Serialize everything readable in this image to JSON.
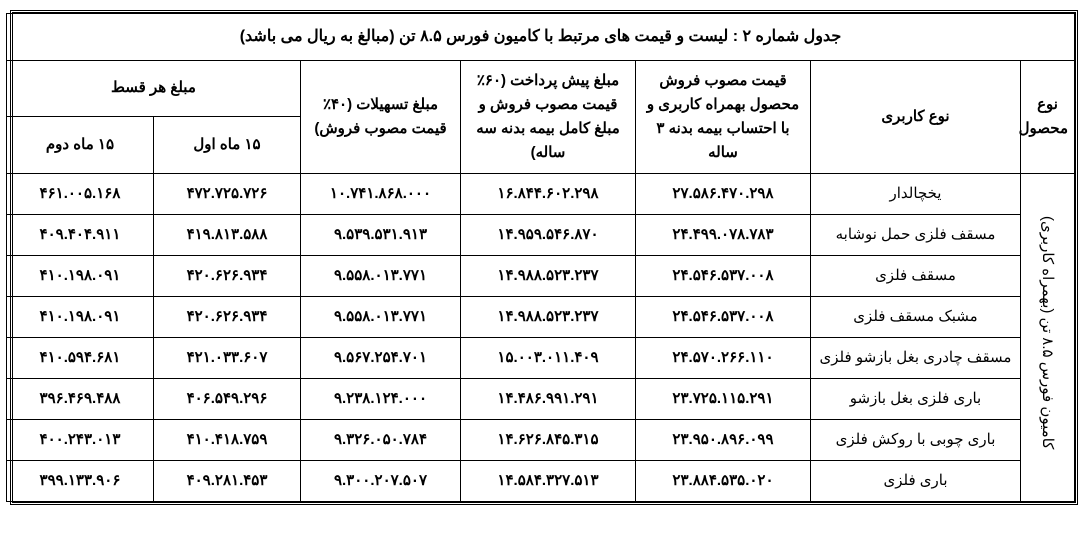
{
  "title": "جدول شماره ۲ : لیست و قیمت های مرتبط با کامیون فورس ۸.۵ تن (مبالغ به ریال می باشد)",
  "headers": {
    "product_type": "نوع محصول",
    "usage_type": "نوع کاربری",
    "approved_price": "قیمت مصوب فروش محصول بهمراه کاربری و با احتساب بیمه بدنه ۳ ساله",
    "prepayment": "مبلغ پیش پرداخت (۶۰٪ قیمت مصوب فروش و مبلغ کامل بیمه بدنه سه ساله)",
    "facilities": "مبلغ تسهیلات (۴۰٪ قیمت مصوب فروش)",
    "installment": "مبلغ هر قسط",
    "first15": "۱۵ ماه اول",
    "second15": "۱۵ ماه دوم"
  },
  "product_label": "کامیون فورس ۸.۵ تن (بهمراه کاربری)",
  "rows": [
    {
      "usage": "یخچالدار",
      "approved": "۲۷.۵۸۶.۴۷۰.۲۹۸",
      "prepay": "۱۶.۸۴۴.۶۰۲.۲۹۸",
      "fac": "۱۰.۷۴۱.۸۶۸.۰۰۰",
      "m1": "۴۷۲.۷۲۵.۷۲۶",
      "m2": "۴۶۱.۰۰۵.۱۶۸"
    },
    {
      "usage": "مسقف فلزی حمل نوشابه",
      "approved": "۲۴.۴۹۹.۰۷۸.۷۸۳",
      "prepay": "۱۴.۹۵۹.۵۴۶.۸۷۰",
      "fac": "۹.۵۳۹.۵۳۱.۹۱۳",
      "m1": "۴۱۹.۸۱۳.۵۸۸",
      "m2": "۴۰۹.۴۰۴.۹۱۱"
    },
    {
      "usage": "مسقف فلزی",
      "approved": "۲۴.۵۴۶.۵۳۷.۰۰۸",
      "prepay": "۱۴.۹۸۸.۵۲۳.۲۳۷",
      "fac": "۹.۵۵۸.۰۱۳.۷۷۱",
      "m1": "۴۲۰.۶۲۶.۹۳۴",
      "m2": "۴۱۰.۱۹۸.۰۹۱"
    },
    {
      "usage": "مشبک مسقف فلزی",
      "approved": "۲۴.۵۴۶.۵۳۷.۰۰۸",
      "prepay": "۱۴.۹۸۸.۵۲۳.۲۳۷",
      "fac": "۹.۵۵۸.۰۱۳.۷۷۱",
      "m1": "۴۲۰.۶۲۶.۹۳۴",
      "m2": "۴۱۰.۱۹۸.۰۹۱"
    },
    {
      "usage": "مسقف چادری بغل بازشو فلزی",
      "approved": "۲۴.۵۷۰.۲۶۶.۱۱۰",
      "prepay": "۱۵.۰۰۳.۰۱۱.۴۰۹",
      "fac": "۹.۵۶۷.۲۵۴.۷۰۱",
      "m1": "۴۲۱.۰۳۳.۶۰۷",
      "m2": "۴۱۰.۵۹۴.۶۸۱"
    },
    {
      "usage": "باری فلزی بغل بازشو",
      "approved": "۲۳.۷۲۵.۱۱۵.۲۹۱",
      "prepay": "۱۴.۴۸۶.۹۹۱.۲۹۱",
      "fac": "۹.۲۳۸.۱۲۴.۰۰۰",
      "m1": "۴۰۶.۵۴۹.۲۹۶",
      "m2": "۳۹۶.۴۶۹.۴۸۸"
    },
    {
      "usage": "باری چوبی با روکش فلزی",
      "approved": "۲۳.۹۵۰.۸۹۶.۰۹۹",
      "prepay": "۱۴.۶۲۶.۸۴۵.۳۱۵",
      "fac": "۹.۳۲۶.۰۵۰.۷۸۴",
      "m1": "۴۱۰.۴۱۸.۷۵۹",
      "m2": "۴۰۰.۲۴۳.۰۱۳"
    },
    {
      "usage": "باری فلزی",
      "approved": "۲۳.۸۸۴.۵۳۵.۰۲۰",
      "prepay": "۱۴.۵۸۴.۳۲۷.۵۱۳",
      "fac": "۹.۳۰۰.۲۰۷.۵۰۷",
      "m1": "۴۰۹.۲۸۱.۴۵۳",
      "m2": "۳۹۹.۱۳۳.۹۰۶"
    }
  ],
  "style": {
    "border_color": "#000000",
    "bg_color": "#ffffff",
    "title_fontsize": 16,
    "cell_fontsize": 15
  }
}
